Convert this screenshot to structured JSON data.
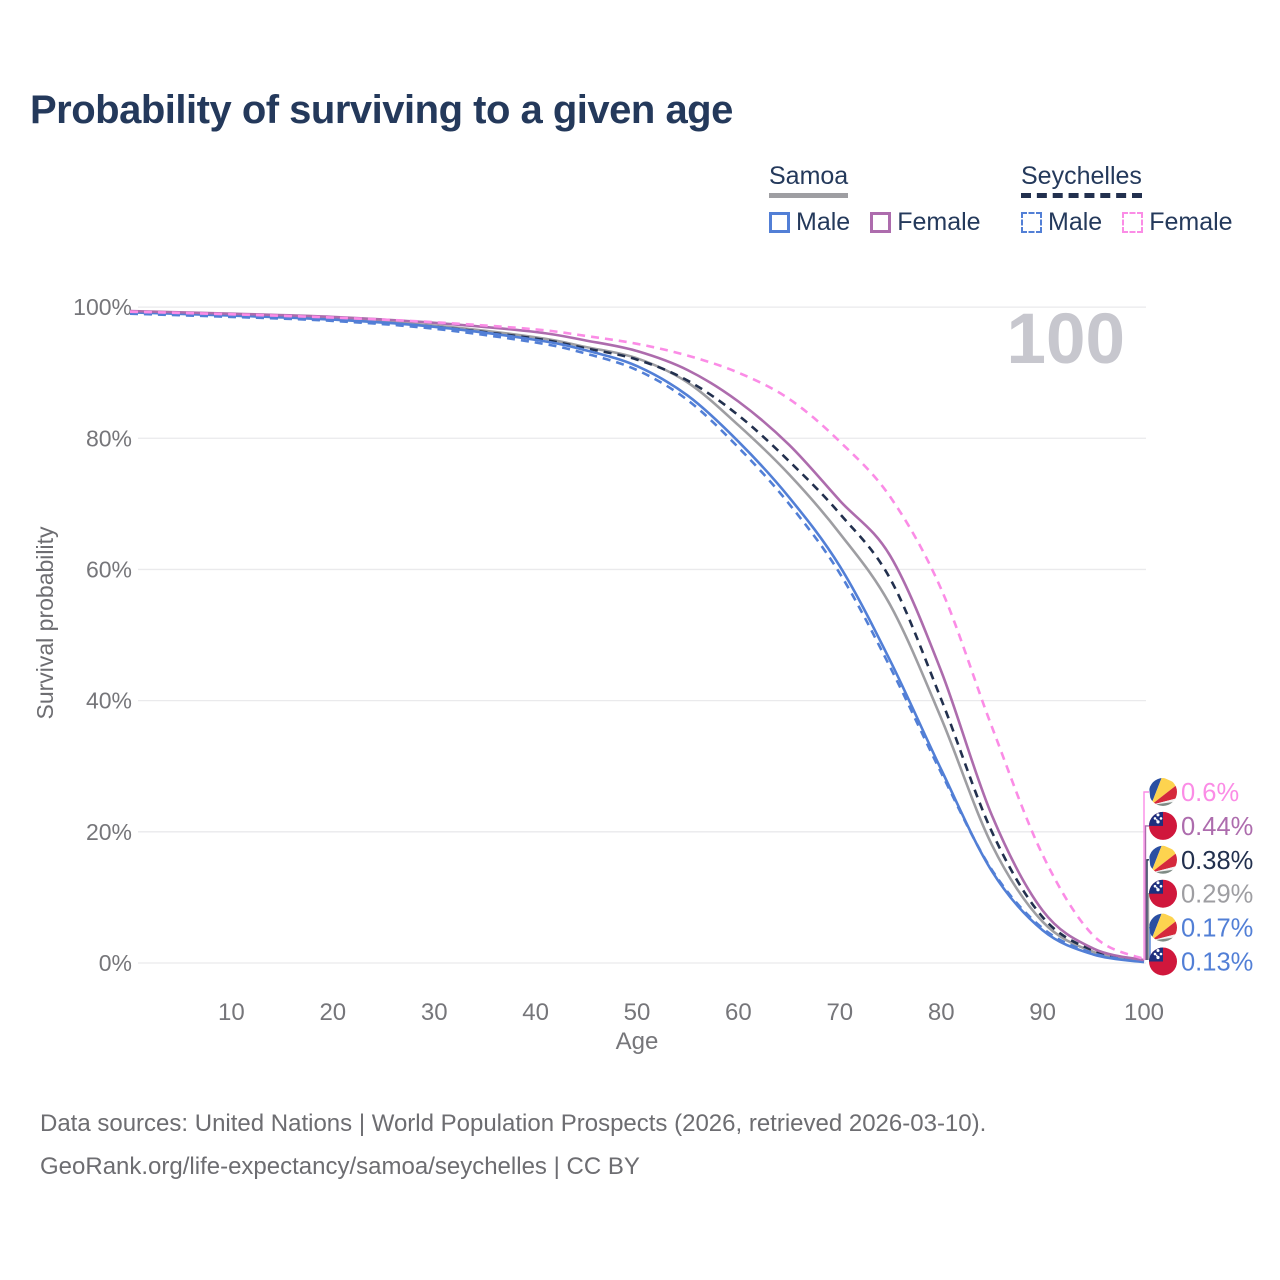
{
  "title": "Probability of surviving to a given age",
  "watermark": "100",
  "legend": {
    "samoa": {
      "label": "Samoa",
      "male": "Male",
      "female": "Female"
    },
    "seychelles": {
      "label": "Seychelles",
      "male": "Male",
      "female": "Female"
    }
  },
  "footer": {
    "line1": "Data sources: United Nations | World Population Prospects (2026, retrieved 2026-03-10).",
    "line2": "GeoRank.org/life-expectancy/samoa/seychelles | CC BY"
  },
  "colors": {
    "blue": "#527fd6",
    "purple": "#ad6cad",
    "pink": "#fb8ce6",
    "navy": "#22304e",
    "gray": "#9e9ea2",
    "title": "#24395b",
    "axis": "#76767a",
    "muted": "#6d6d71",
    "grid": "#eaeaec",
    "watermark": "#c7c7ce"
  },
  "flags": {
    "samoa": {
      "field": "#d0173c",
      "canton": "#1d2f7e",
      "stars": "#ffffff"
    },
    "seychelles": {
      "blue": "#2a4fa2",
      "yellow": "#fdd34f",
      "red": "#d5293c",
      "white": "#f2f2f2",
      "green": "#7f8b85"
    }
  },
  "chart_data": {
    "type": "line",
    "title": "Probability of surviving to a given age",
    "xlabel": "Age",
    "ylabel": "Survival probability",
    "xlim": [
      0,
      100
    ],
    "ylim": [
      0,
      100
    ],
    "grid": "horizontal",
    "legend_position": "top-right",
    "x_ticks": [
      10,
      20,
      30,
      40,
      50,
      60,
      70,
      80,
      90,
      100
    ],
    "y_ticks": [
      0,
      20,
      40,
      60,
      80,
      100
    ],
    "y_tick_labels": [
      "0%",
      "20%",
      "40%",
      "60%",
      "80%",
      "100%"
    ],
    "x": [
      0,
      10,
      20,
      30,
      40,
      45,
      50,
      55,
      60,
      65,
      70,
      75,
      80,
      85,
      90,
      95,
      100
    ],
    "series": [
      {
        "name": "Seychelles Female",
        "country": "Seychelles",
        "sex": "Female",
        "color": "#fb8ce6",
        "dashed": true,
        "flag": "seychelles",
        "end_label": "0.6%",
        "values": [
          99.3,
          98.9,
          98.4,
          97.7,
          96.6,
          95.6,
          94.4,
          92.6,
          90.0,
          86.0,
          79.5,
          71.0,
          57.0,
          36.0,
          16.5,
          4.2,
          0.6
        ]
      },
      {
        "name": "Samoa Female",
        "country": "Samoa",
        "sex": "Female",
        "color": "#ad6cad",
        "dashed": false,
        "flag": "samoa",
        "end_label": "0.44%",
        "values": [
          99.4,
          99.0,
          98.5,
          97.6,
          96.2,
          94.9,
          93.3,
          90.4,
          85.6,
          79.0,
          70.5,
          62.0,
          44.5,
          22.5,
          8.0,
          2.2,
          0.44
        ]
      },
      {
        "name": "Seychelles Both sexes",
        "country": "Seychelles",
        "sex": "Both",
        "color": "#22304e",
        "dashed": true,
        "flag": "seychelles",
        "end_label": "0.38%",
        "values": [
          99.1,
          98.6,
          98.0,
          97.0,
          95.2,
          93.7,
          92.0,
          88.8,
          83.5,
          76.5,
          68.5,
          58.5,
          40.2,
          20.0,
          7.0,
          1.9,
          0.38
        ]
      },
      {
        "name": "Samoa Both sexes",
        "country": "Samoa",
        "sex": "Both",
        "color": "#9e9ea2",
        "dashed": false,
        "flag": "samoa",
        "end_label": "0.29%",
        "values": [
          99.3,
          98.8,
          98.2,
          97.2,
          95.4,
          93.9,
          92.2,
          88.5,
          82.0,
          74.5,
          65.5,
          54.5,
          37.3,
          18.0,
          6.3,
          1.7,
          0.29
        ]
      },
      {
        "name": "Seychelles Male",
        "country": "Seychelles",
        "sex": "Male",
        "color": "#527fd6",
        "dashed": true,
        "flag": "seychelles",
        "end_label": "0.17%",
        "values": [
          99.0,
          98.5,
          97.9,
          96.7,
          94.6,
          92.9,
          90.4,
          85.8,
          78.6,
          70.0,
          59.4,
          45.0,
          29.0,
          14.2,
          5.3,
          1.5,
          0.17
        ]
      },
      {
        "name": "Samoa Male",
        "country": "Samoa",
        "sex": "Male",
        "color": "#527fd6",
        "dashed": false,
        "flag": "samoa",
        "end_label": "0.13%",
        "values": [
          99.2,
          98.7,
          98.1,
          97.0,
          95.0,
          93.4,
          91.0,
          86.5,
          79.5,
          71.0,
          60.5,
          46.0,
          29.5,
          14.0,
          5.0,
          1.3,
          0.13
        ]
      }
    ]
  }
}
